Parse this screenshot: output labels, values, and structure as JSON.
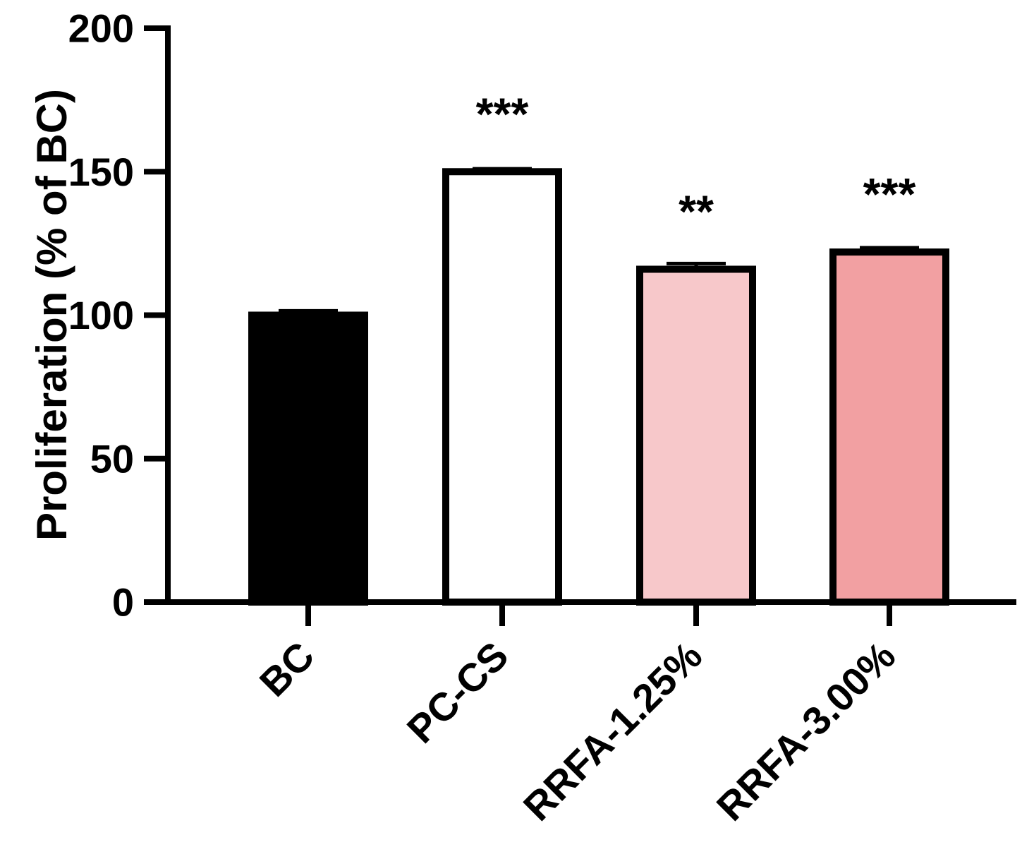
{
  "chart_data": {
    "type": "bar",
    "ylabel": "Proliferation (% of BC)",
    "xlabel": "",
    "ylim": [
      0,
      200
    ],
    "yticks": [
      "0",
      "50",
      "100",
      "150",
      "200"
    ],
    "categories": [
      "BC",
      "PC-CS",
      "RRFA-1.25%",
      "RRFA-3.00%"
    ],
    "values": [
      100,
      150,
      116,
      122
    ],
    "errors": [
      1.5,
      1,
      2,
      1.5
    ],
    "significance": [
      "",
      "***",
      "**",
      "***"
    ],
    "colors": [
      "#000000",
      "#ffffff",
      "#f7c8ca",
      "#f2a0a2"
    ],
    "grid": false
  }
}
